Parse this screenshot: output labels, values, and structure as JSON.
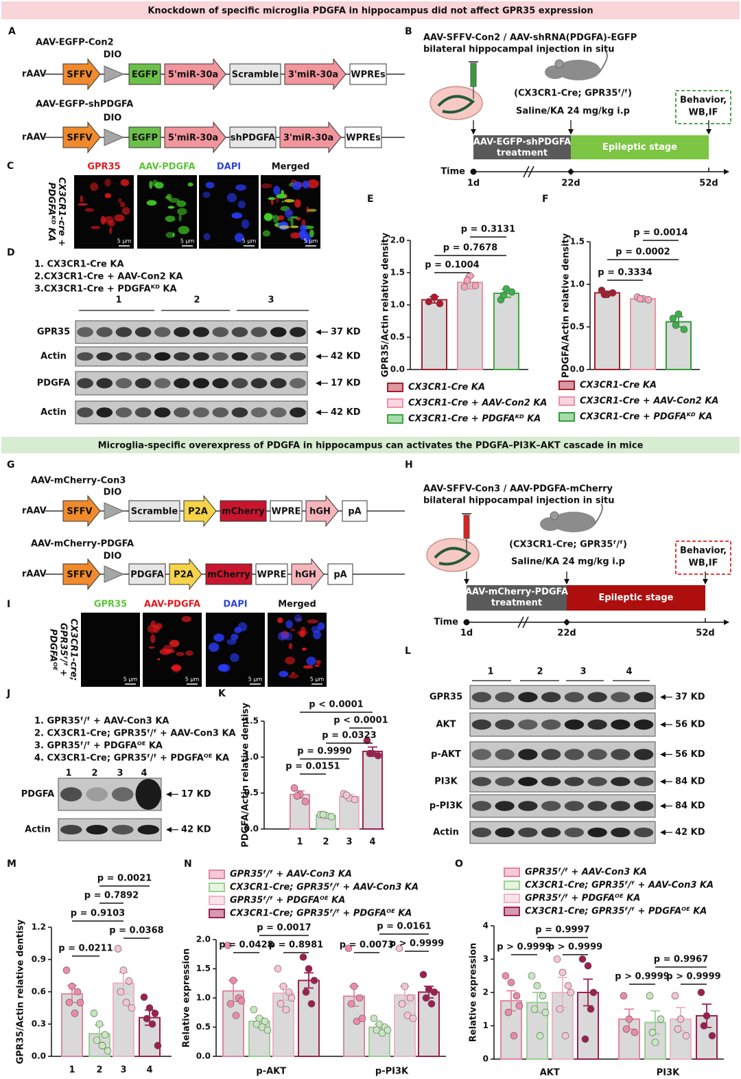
{
  "banners": [
    "Knockdown of specific microglia PDGFA in hippocampus did not affect GPR35 expression",
    "Microglia-specific overexpress of PDGFA in hippocampus can activates the PDGFA–PI3K–AKT cascade in mice"
  ],
  "panel_letters": [
    "A",
    "B",
    "C",
    "D",
    "E",
    "F",
    "G",
    "H",
    "I",
    "J",
    "K",
    "L",
    "M",
    "N",
    "O"
  ],
  "constructs": [
    {
      "title": "AAV-EGFP-Con2",
      "dio": "DIO",
      "prefix": "rAAV",
      "parts": [
        {
          "text": "SFFV",
          "color": "#f08a2c",
          "arrow": true
        },
        {
          "text": "EGFP",
          "color": "#6cc04a",
          "arrow": false
        },
        {
          "text": "5'miR-30a",
          "color": "#f2959d",
          "arrow": true
        },
        {
          "text": "Scramble",
          "color": "#e6e6e6",
          "arrow": false
        },
        {
          "text": "3'miR-30a",
          "color": "#f2959d",
          "arrow": true
        },
        {
          "text": "WPREs",
          "color": "#ffffff",
          "arrow": false
        }
      ]
    },
    {
      "title": "AAV-EGFP-shPDGFA",
      "dio": "DIO",
      "prefix": "rAAV",
      "parts": [
        {
          "text": "SFFV",
          "color": "#f08a2c",
          "arrow": true
        },
        {
          "text": "EGFP",
          "color": "#6cc04a",
          "arrow": false
        },
        {
          "text": "5'miR-30a",
          "color": "#f2959d",
          "arrow": true
        },
        {
          "text": "shPDGFA",
          "color": "#e6e6e6",
          "arrow": false
        },
        {
          "text": "3'miR-30a",
          "color": "#f2959d",
          "arrow": true
        },
        {
          "text": "WPREs",
          "color": "#ffffff",
          "arrow": false
        }
      ]
    },
    {
      "title": "AAV-mCherry-Con3",
      "dio": "DIO",
      "prefix": "rAAV",
      "parts": [
        {
          "text": "SFFV",
          "color": "#f08a2c",
          "arrow": true
        },
        {
          "text": "Scramble",
          "color": "#e6e6e6",
          "arrow": false
        },
        {
          "text": "P2A",
          "color": "#f7d34a",
          "arrow": true
        },
        {
          "text": "mCherry",
          "color": "#c8162e",
          "arrow": false
        },
        {
          "text": "WPRE",
          "color": "#ffffff",
          "arrow": false
        },
        {
          "text": "hGH",
          "color": "#f5b5bb",
          "arrow": true
        },
        {
          "text": "pA",
          "color": "#ffffff",
          "arrow": false
        }
      ]
    },
    {
      "title": "AAV-mCherry-PDGFA",
      "dio": "DIO",
      "prefix": "rAAV",
      "parts": [
        {
          "text": "SFFV",
          "color": "#f08a2c",
          "arrow": true
        },
        {
          "text": "PDGFA",
          "color": "#e6e6e6",
          "arrow": false
        },
        {
          "text": "P2A",
          "color": "#f7d34a",
          "arrow": true
        },
        {
          "text": "mCherry",
          "color": "#c8162e",
          "arrow": false
        },
        {
          "text": "WPRE",
          "color": "#ffffff",
          "arrow": false
        },
        {
          "text": "hGH",
          "color": "#f5b5bb",
          "arrow": true
        },
        {
          "text": "pA",
          "color": "#ffffff",
          "arrow": false
        }
      ]
    }
  ],
  "timelines": [
    {
      "title": [
        "AAV-SFFV-Con2 / AAV-shRNA(PDGFA)-EGFP",
        "bilateral hippocampal injection in situ"
      ],
      "mouse": "(CX3CR1-Cre; GPR35ᶠ/ᶠ)",
      "dose": "Saline/KA  24 mg/kg i.p",
      "end": [
        "Behavior,",
        "WB,IF"
      ],
      "treatment": [
        "AAV-EGFP-shPDGFA",
        "treatment"
      ],
      "stage": "Epileptic stage",
      "axis": "Time",
      "days": [
        "1d",
        "22d",
        "52d"
      ],
      "colors": [
        "#5a5a5a",
        "#7cc644",
        "#3a9a3a"
      ]
    },
    {
      "title": [
        "AAV-SFFV-Con3 / AAV-PDGFA-mCherry",
        "bilateral hippocampal injection in situ"
      ],
      "mouse": "(CX3CR1-Cre; GPR35ᶠ/ᶠ)",
      "dose": "Saline/KA  24 mg/kg i.p",
      "end": [
        "Behavior,",
        "WB,IF"
      ],
      "treatment": [
        "AAV-mCherry-PDGFA",
        "treatment"
      ],
      "stage": "Epileptic stage",
      "axis": "Time",
      "days": [
        "1d",
        "22d",
        "52d"
      ],
      "colors": [
        "#5a5a5a",
        "#ad0e0e",
        "#e02020"
      ]
    }
  ],
  "images": [
    {
      "channels": [
        "GPR35",
        "AAV-PDGFA",
        "DAPI",
        "Merged"
      ],
      "colors": [
        "#e3191c",
        "#5cc43a",
        "#2a46d6",
        "#111111"
      ],
      "side": [
        "CX3CR1-cre +",
        "PDGFAᴷᴰ KA"
      ],
      "scale": "5 μm"
    },
    {
      "channels": [
        "GPR35",
        "AAV-PDGFA",
        "DAPI",
        "Merged"
      ],
      "colors": [
        "#5cc43a",
        "#e3191c",
        "#2a46d6",
        "#111111"
      ],
      "side": [
        "CX3CR1-cre;",
        "GPR35ᶠ/ᶠ +",
        "PDGFAᴼᴱ"
      ],
      "scale": "5 μm"
    }
  ],
  "blots": [
    {
      "legend": [
        "1. CX3CR1-Cre KA",
        "2.CX3CR1-Cre + AAV-Con2 KA",
        "3.CX3CR1-Cre + PDGFAᴷᴰ KA"
      ],
      "lanes": [
        "1",
        "2",
        "3"
      ],
      "rows": [
        "GPR35",
        "Actin",
        "PDGFA",
        "Actin"
      ],
      "sizes": [
        "37 KD",
        "42 KD",
        "17 KD",
        "42 KD"
      ]
    },
    {
      "legend": [
        "1. GPR35ᶠ/ᶠ + AAV-Con3 KA",
        "2. CX3CR1-Cre; GPR35ᶠ/ᶠ + AAV-Con3 KA",
        "3. GPR35ᶠ/ᶠ + PDGFAᴼᴱ KA",
        "4. CX3CR1-Cre; GPR35ᶠ/ᶠ + PDGFAᴼᴱ KA"
      ],
      "lanes": [
        "1",
        "2",
        "3",
        "4"
      ],
      "rows": [
        "PDGFA",
        "Actin"
      ],
      "sizes": [
        "17 KD",
        "42 KD"
      ]
    },
    {
      "lanes": [
        "1",
        "2",
        "3",
        "4"
      ],
      "rows": [
        "GPR35",
        "AKT",
        "p-AKT",
        "PI3K",
        "p-PI3K",
        "Actin"
      ],
      "sizes": [
        "37 KD",
        "56 KD",
        "56 KD",
        "84 KD",
        "84 KD",
        "42 KD"
      ]
    }
  ],
  "chart_data": [
    {
      "type": "bar",
      "ylabel": "GPR35/Actin relative density",
      "ylim": [
        0,
        2
      ],
      "yticks": [
        {
          "value": 0,
          "label": "0.0"
        },
        0.5,
        {
          "value": 1,
          "label": "1.0"
        },
        1.5,
        {
          "value": 2,
          "label": "2.0"
        }
      ],
      "categories": [
        null
      ],
      "series": [
        {
          "name": "CX3CR1-Cre KA",
          "color": "#a61c2e",
          "point_color": "#b5172b",
          "values": [
            1.08
          ],
          "errors": [
            0.05
          ],
          "points": [
            [
              1.05,
              1.12,
              1.02
            ]
          ]
        },
        {
          "name": "CX3CR1-Cre + AAV-Con2 KA",
          "color": "#f08fa8",
          "point_color": "#f5a3b8",
          "values": [
            1.35
          ],
          "errors": [
            0.1
          ],
          "points": [
            [
              1.28,
              1.45,
              1.3,
              1.38
            ]
          ]
        },
        {
          "name": "CX3CR1-Cre + PDGFAᴷᴰ KA",
          "color": "#3aa83a",
          "point_color": "#3cb04a",
          "values": [
            1.18
          ],
          "errors": [
            0.06
          ],
          "points": [
            [
              1.08,
              1.25,
              1.2,
              1.15
            ]
          ]
        }
      ],
      "annotations": [
        "p = 0.3131",
        "p = 0.7678",
        "p = 0.1004"
      ]
    },
    {
      "type": "bar",
      "ylabel": "PDGFA/Actin relative density",
      "ylim": [
        0,
        1.5
      ],
      "yticks": [
        {
          "value": 0,
          "label": "0.0"
        },
        0.5,
        {
          "value": 1,
          "label": "1.0"
        },
        1.5
      ],
      "categories": [
        null
      ],
      "series": [
        {
          "name": "CX3CR1-Cre KA",
          "color": "#a61c2e",
          "point_color": "#a61c2e",
          "values": [
            0.9
          ],
          "errors": [
            0.02
          ],
          "points": [
            [
              0.93,
              0.88,
              0.9,
              0.88
            ]
          ]
        },
        {
          "name": "CX3CR1-Cre + AAV-Con2 KA",
          "color": "#f08fa8",
          "point_color": "#f2a5b9",
          "values": [
            0.83
          ],
          "errors": [
            0.01
          ],
          "points": [
            [
              0.85,
              0.83,
              0.82,
              0.83
            ]
          ]
        },
        {
          "name": "CX3CR1-Cre + PDGFAᴷᴰ KA",
          "color": "#2e9e3a",
          "point_color": "#3cb04a",
          "values": [
            0.56
          ],
          "errors": [
            0.06
          ],
          "points": [
            [
              0.6,
              0.65,
              0.47,
              0.52
            ]
          ]
        }
      ],
      "annotations": [
        "p = 0.0014",
        "p = 0.0002",
        "p = 0.3334"
      ]
    },
    {
      "type": "bar",
      "ylabel": "PDGFA/Actin relative dentisy",
      "ylim": [
        0,
        1.5
      ],
      "yticks": [
        {
          "value": 0,
          "label": "0.0"
        },
        0.5,
        {
          "value": 1,
          "label": "1.0"
        },
        1.5
      ],
      "categories": [
        "1",
        "2",
        "3",
        "4"
      ],
      "values": [
        0.48,
        0.19,
        0.45,
        1.08
      ],
      "errors": [
        0.05,
        0.02,
        0.03,
        0.06
      ],
      "points": [
        [
          0.57,
          0.48,
          0.38,
          0.46
        ],
        [
          0.2,
          0.19,
          0.17,
          0.2
        ],
        [
          0.49,
          0.43,
          0.41,
          0.47
        ],
        [
          1.23,
          1.05,
          1.02,
          1.05
        ]
      ],
      "colors": [
        "#e4849f",
        "#9ccf94",
        "#f0b3c6",
        "#9e1f4f"
      ],
      "point_colors": [
        "#ec8aaa",
        "#c5e8bd",
        "#f5c3d3",
        "#9e1f4f"
      ],
      "annotations": [
        "p < 0.0001",
        "p < 0.0001",
        "p = 0.0323",
        "p = 0.9990",
        "p = 0.0151"
      ]
    },
    {
      "type": "bar",
      "ylabel": "GPR35/Actin relative dentisy",
      "ylim": [
        0,
        1.2
      ],
      "yticks": [
        {
          "value": 0,
          "label": "0.0"
        },
        0.3,
        0.6,
        0.9,
        1.2
      ],
      "categories": [
        "1",
        "2",
        "3",
        "4"
      ],
      "values": [
        0.58,
        0.21,
        0.68,
        0.36
      ],
      "errors": [
        0.08,
        0.08,
        0.1,
        0.07
      ],
      "points": [
        [
          0.8,
          0.65,
          0.6,
          0.5,
          0.4,
          0.5
        ],
        [
          0.4,
          0.3,
          0.2,
          0.15,
          0.1,
          0.05
        ],
        [
          1.0,
          0.8,
          0.7,
          0.6,
          0.5,
          0.45
        ],
        [
          0.55,
          0.45,
          0.4,
          0.35,
          0.3,
          0.1
        ]
      ],
      "colors": [
        "#e4849f",
        "#9ccf94",
        "#f0b3c6",
        "#9e1f4f"
      ],
      "point_colors": [
        "#ec8aaa",
        "#c5e8bd",
        "#f5c3d3",
        "#9e1f4f"
      ],
      "annotations": [
        "p = 0.0021",
        "p = 0.7892",
        "p = 0.9103",
        "p = 0.0368",
        "p = 0.0211"
      ]
    },
    {
      "type": "bar",
      "ylabel": "Relative  expression",
      "ylim": [
        0,
        2
      ],
      "yticks": [
        {
          "value": 0,
          "label": "0.0"
        },
        0.5,
        {
          "value": 1,
          "label": "1.0"
        },
        1.5,
        {
          "value": 2,
          "label": "2.0"
        }
      ],
      "categories": [
        "p-AKT",
        "p-PI3K"
      ],
      "series": [
        {
          "name": "GPR35ᶠ/ᶠ + AAV-Con3 KA",
          "color": "#e4849f",
          "point_color": "#ec8aaa",
          "values": [
            1.12,
            1.03
          ],
          "errors": [
            0.18,
            0.17
          ],
          "points": [
            [
              1.9,
              1.3,
              1.0,
              0.9,
              0.7,
              0.95
            ],
            [
              1.85,
              1.2,
              1.0,
              0.9,
              0.6,
              0.65
            ]
          ]
        },
        {
          "name": "CX3CR1-Cre; GPR35ᶠ/ᶠ + AAV-Con3 KA",
          "color": "#9ccf94",
          "point_color": "#c5e8bd",
          "values": [
            0.6,
            0.5
          ],
          "errors": [
            0.06,
            0.05
          ],
          "points": [
            [
              0.8,
              0.65,
              0.6,
              0.55,
              0.5,
              0.45
            ],
            [
              0.65,
              0.55,
              0.5,
              0.45,
              0.4,
              0.45
            ]
          ]
        },
        {
          "name": "GPR35ᶠ/ᶠ + PDGFAᴼᴱ KA",
          "color": "#f0b3c6",
          "point_color": "#f5c3d3",
          "values": [
            1.08,
            1.05
          ],
          "errors": [
            0.12,
            0.15
          ],
          "points": [
            [
              1.5,
              1.2,
              1.1,
              0.9,
              0.8,
              1.0
            ],
            [
              1.85,
              1.2,
              1.0,
              0.9,
              0.7,
              0.65
            ]
          ]
        },
        {
          "name": "CX3CR1-Cre; GPR35ᶠ/ᶠ + PDGFAᴼᴱ KA",
          "color": "#9e1f4f",
          "point_color": "#9e1f4f",
          "values": [
            1.3,
            1.1
          ],
          "errors": [
            0.13,
            0.1
          ],
          "points": [
            [
              1.7,
              1.5,
              1.3,
              1.1,
              0.9
            ],
            [
              1.4,
              1.15,
              1.1,
              1.0,
              0.9
            ]
          ]
        }
      ],
      "annotations": [
        "p = 0.0017",
        "p = 0.0161",
        "p = 0.0428",
        "p = 0.8981",
        "p = 0.0073",
        "p > 0.9999"
      ]
    },
    {
      "type": "bar",
      "ylabel": "Relative  expression",
      "ylim": [
        0,
        4
      ],
      "yticks": [
        0,
        1,
        2,
        3,
        4
      ],
      "categories": [
        "AKT",
        "PI3K"
      ],
      "series": [
        {
          "name": "GPR35ᶠ/ᶠ + AAV-Con3 KA",
          "color": "#e4849f",
          "point_color": "#ec8aaa",
          "values": [
            1.75,
            1.2
          ],
          "errors": [
            0.3,
            0.3
          ],
          "points": [
            [
              2.5,
              2.3,
              1.9,
              1.4,
              0.7,
              1.6
            ],
            [
              1.9,
              1.2,
              0.8,
              0.9
            ]
          ]
        },
        {
          "name": "CX3CR1-Cre; GPR35ᶠ/ᶠ + AAV-Con3 KA",
          "color": "#9ccf94",
          "point_color": "#c5e8bd",
          "values": [
            1.7,
            1.1
          ],
          "errors": [
            0.3,
            0.35
          ],
          "points": [
            [
              2.5,
              2.2,
              1.9,
              1.5,
              0.7,
              1.4
            ],
            [
              1.9,
              0.5,
              1.2,
              0.8
            ]
          ]
        },
        {
          "name": "GPR35ᶠ/ᶠ + PDGFAᴼᴱ KA",
          "color": "#f0b3c6",
          "point_color": "#f5c3d3",
          "values": [
            2.0,
            1.2
          ],
          "errors": [
            0.45,
            0.35
          ],
          "points": [
            [
              3.0,
              2.6,
              2.2,
              1.5,
              0.7,
              2.0
            ],
            [
              1.9,
              1.2,
              0.7,
              0.9
            ]
          ]
        },
        {
          "name": "CX3CR1-Cre; GPR35ᶠ/ᶠ + PDGFAᴼᴱ KA",
          "color": "#9e1f4f",
          "point_color": "#9e1f4f",
          "values": [
            2.0,
            1.3
          ],
          "errors": [
            0.4,
            0.35
          ],
          "points": [
            [
              3.0,
              2.8,
              2.0,
              0.6,
              1.5
            ],
            [
              2.0,
              1.3,
              0.7,
              1.0
            ]
          ]
        }
      ],
      "annotations": [
        "p = 0.9997",
        "p > 0.9999",
        "p > 0.9999",
        "p = 0.9967",
        "p > 0.9999",
        "p > 0.9999"
      ]
    }
  ]
}
